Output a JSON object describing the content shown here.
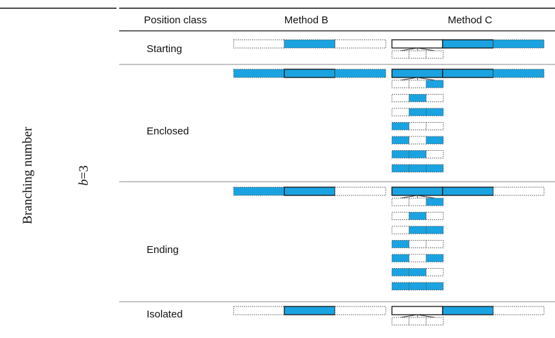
{
  "header": {
    "col_position": "Position class",
    "col_method_b": "Method B",
    "col_method_c": "Method C"
  },
  "side": {
    "branching_label": "Branching number",
    "b_symbol": "b",
    "b_value": "=3"
  },
  "colors": {
    "fill": "#1aa3e0",
    "line": "#111111",
    "dotted": "#555555",
    "rule": "#888888"
  },
  "legend": {
    "F": "filled segment with solid border",
    "E": "empty segment with solid border",
    "f": "filled segment with dotted border",
    "e": "empty segment with dotted border"
  },
  "rows": [
    {
      "name": "Starting",
      "label": "Starting",
      "method_b": "efs",
      "method_c": "EFf",
      "sub": [
        "eee"
      ]
    },
    {
      "name": "Enclosed",
      "label": "Enclosed",
      "method_b": "fFf",
      "method_c": "FFf",
      "sub": [
        "eef",
        "efe",
        "eff",
        "fee",
        "fef",
        "ffe",
        "fff"
      ]
    },
    {
      "name": "Ending",
      "label": "Ending",
      "method_b": "fFe",
      "method_c": "FFe",
      "sub": [
        "eef",
        "efe",
        "eff",
        "fee",
        "fef",
        "ffe",
        "fff"
      ]
    },
    {
      "name": "Isolated",
      "label": "Isolated",
      "method_b": "eFe",
      "method_c": "EFe",
      "sub": [
        "eee"
      ]
    }
  ]
}
